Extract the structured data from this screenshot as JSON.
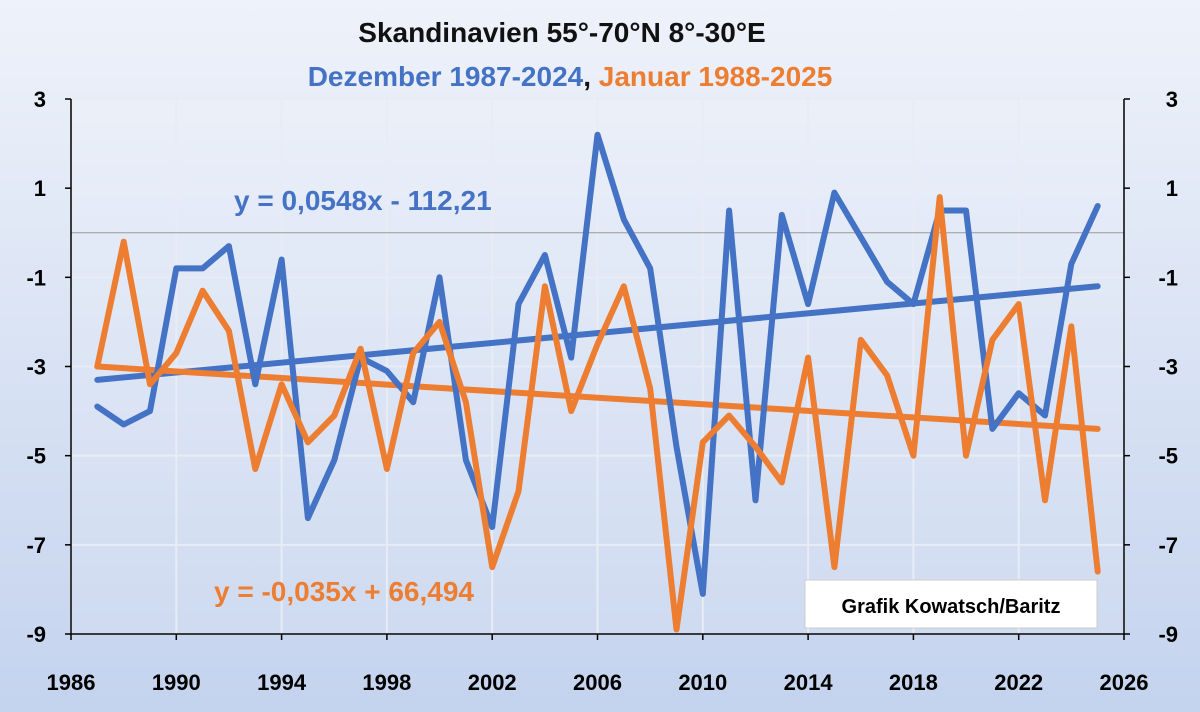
{
  "chart_data": {
    "type": "line",
    "title": "Skandinavien 55°-70°N 8°-30°E",
    "subtitle_parts": [
      {
        "text": "Dezember 1987-2024",
        "color": "#4472c4"
      },
      {
        "text": ",",
        "color": "#111111"
      },
      {
        "text": " Januar 1988-2025",
        "color": "#ed7d31"
      }
    ],
    "x_ticks": [
      "1986",
      "1990",
      "1994",
      "1998",
      "2002",
      "2006",
      "2010",
      "2014",
      "2018",
      "2022",
      "2026"
    ],
    "y_ticks_left": [
      "3",
      "1",
      "-1",
      "-3",
      "-5",
      "-7",
      "-9"
    ],
    "y_ticks_right": [
      "3",
      "1",
      "-1",
      "-3",
      "-5",
      "-7",
      "-9"
    ],
    "xlim": [
      1986,
      2026
    ],
    "ylim": [
      -9,
      3
    ],
    "grid": true,
    "series": [
      {
        "color": "#4472c4",
        "x": [
          1987,
          1988,
          1989,
          1990,
          1991,
          1992,
          1993,
          1994,
          1995,
          1996,
          1997,
          1998,
          1999,
          2000,
          2001,
          2002,
          2003,
          2004,
          2005,
          2006,
          2007,
          2008,
          2009,
          2010,
          2011,
          2012,
          2013,
          2014,
          2015,
          2016,
          2017,
          2018,
          2019,
          2020,
          2021,
          2022,
          2023,
          2024,
          2025
        ],
        "values": [
          -3.9,
          -4.3,
          -4.0,
          -0.8,
          -0.8,
          -0.3,
          -3.4,
          -0.6,
          -6.4,
          -5.1,
          -2.8,
          -3.1,
          -3.8,
          -1.0,
          -5.1,
          -6.6,
          -1.6,
          -0.5,
          -2.8,
          2.2,
          0.3,
          -0.8,
          -4.8,
          -8.1,
          0.5,
          -6.0,
          0.4,
          -1.6,
          0.9,
          -0.1,
          -1.1,
          -1.6,
          0.5,
          0.5,
          -4.4,
          -3.6,
          -4.1,
          -0.7,
          0.6
        ]
      },
      {
        "color": "#ed7d31",
        "x": [
          1987,
          1988,
          1989,
          1990,
          1991,
          1992,
          1993,
          1994,
          1995,
          1996,
          1997,
          1998,
          1999,
          2000,
          2001,
          2002,
          2003,
          2004,
          2005,
          2006,
          2007,
          2008,
          2009,
          2010,
          2011,
          2012,
          2013,
          2014,
          2015,
          2016,
          2017,
          2018,
          2019,
          2020,
          2021,
          2022,
          2023,
          2024,
          2025
        ],
        "values": [
          -3.0,
          -0.2,
          -3.4,
          -2.7,
          -1.3,
          -2.2,
          -5.3,
          -3.4,
          -4.7,
          -4.1,
          -2.6,
          -5.3,
          -2.7,
          -2.0,
          -3.8,
          -7.5,
          -5.8,
          -1.2,
          -4.0,
          -2.5,
          -1.2,
          -3.5,
          -8.9,
          -4.7,
          -4.1,
          -4.8,
          -5.6,
          -2.8,
          -7.5,
          -2.4,
          -3.2,
          -5.0,
          0.8,
          -5.0,
          -2.4,
          -1.6,
          -6.0,
          -2.1,
          -7.6
        ]
      }
    ],
    "trendlines": [
      {
        "color": "#4472c4",
        "x": [
          1987,
          2025
        ],
        "values": [
          -3.3,
          -1.2
        ],
        "equation": "y = 0,0548x - 112,21"
      },
      {
        "color": "#ed7d31",
        "x": [
          1987,
          2025
        ],
        "values": [
          -3.0,
          -4.4
        ],
        "equation": "y = -0,035x + 66,494"
      }
    ],
    "annotation": "Grafik Kowatsch/Baritz"
  }
}
